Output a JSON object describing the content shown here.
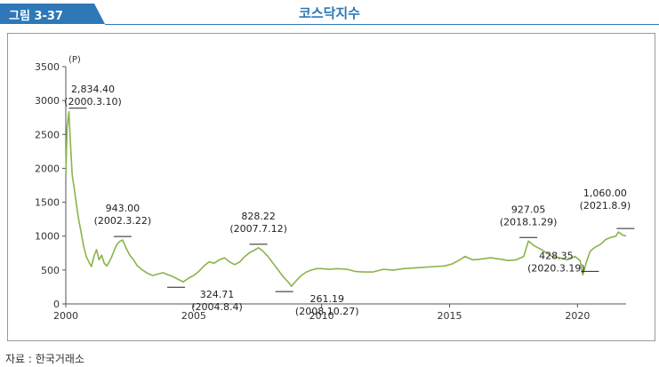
{
  "figure_label": "그림 3-37",
  "source": "자료 : 한국거래소",
  "chart_data": {
    "type": "line",
    "title": "코스닥지수",
    "ylabel": "(P)",
    "xlim": [
      2000,
      2021.9
    ],
    "ylim": [
      0,
      3500
    ],
    "xticks": [
      2000,
      2005,
      2010,
      2015,
      2020
    ],
    "yticks": [
      0,
      500,
      1000,
      1500,
      2000,
      2500,
      3000,
      3500
    ],
    "grid": false,
    "line_color": "#8ab44a",
    "series": [
      {
        "x": [
          2000.0,
          2000.05,
          2000.12,
          2000.19,
          2000.25,
          2000.33,
          2000.42,
          2000.5,
          2000.6,
          2000.7,
          2000.8,
          2000.9,
          2001.0,
          2001.1,
          2001.2,
          2001.3,
          2001.4,
          2001.5,
          2001.6,
          2001.7,
          2001.8,
          2001.9,
          2002.0,
          2002.1,
          2002.22,
          2002.35,
          2002.5,
          2002.65,
          2002.8,
          2003.0,
          2003.2,
          2003.4,
          2003.6,
          2003.8,
          2004.0,
          2004.2,
          2004.4,
          2004.59,
          2004.8,
          2005.0,
          2005.2,
          2005.4,
          2005.6,
          2005.8,
          2006.0,
          2006.2,
          2006.4,
          2006.6,
          2006.8,
          2007.0,
          2007.2,
          2007.4,
          2007.53,
          2007.7,
          2007.9,
          2008.1,
          2008.3,
          2008.5,
          2008.7,
          2008.82,
          2009.0,
          2009.2,
          2009.4,
          2009.6,
          2009.8,
          2010.0,
          2010.3,
          2010.6,
          2011.0,
          2011.3,
          2011.6,
          2012.0,
          2012.4,
          2012.8,
          2013.2,
          2013.6,
          2014.0,
          2014.4,
          2014.8,
          2015.1,
          2015.4,
          2015.6,
          2015.9,
          2016.2,
          2016.6,
          2017.0,
          2017.3,
          2017.6,
          2017.9,
          2018.08,
          2018.3,
          2018.6,
          2018.8,
          2019.0,
          2019.3,
          2019.6,
          2019.9,
          2020.1,
          2020.21,
          2020.35,
          2020.5,
          2020.7,
          2020.9,
          2021.1,
          2021.3,
          2021.5,
          2021.6,
          2021.75,
          2021.9
        ],
        "y": [
          1900,
          2600,
          2834.4,
          2300,
          1900,
          1700,
          1450,
          1250,
          1050,
          850,
          700,
          620,
          550,
          700,
          800,
          650,
          720,
          600,
          560,
          620,
          700,
          800,
          880,
          920,
          943,
          830,
          720,
          650,
          560,
          500,
          450,
          420,
          440,
          460,
          430,
          400,
          360,
          324.71,
          380,
          420,
          480,
          560,
          620,
          600,
          650,
          680,
          620,
          580,
          620,
          700,
          760,
          800,
          828.22,
          780,
          700,
          600,
          500,
          400,
          320,
          261.19,
          340,
          420,
          470,
          500,
          520,
          520,
          510,
          520,
          510,
          480,
          470,
          470,
          510,
          500,
          520,
          530,
          540,
          550,
          560,
          590,
          650,
          700,
          650,
          660,
          680,
          660,
          640,
          650,
          700,
          927.05,
          860,
          800,
          750,
          700,
          680,
          650,
          700,
          640,
          428.35,
          620,
          780,
          840,
          880,
          950,
          980,
          1000,
          1060,
          1020,
          1000
        ]
      }
    ],
    "annotations": [
      {
        "value": "2,834.40",
        "date": "(2000.3.10)",
        "x": 2000.19,
        "y": 2834.4
      },
      {
        "value": "943.00",
        "date": "(2002.3.22)",
        "x": 2002.22,
        "y": 943
      },
      {
        "value": "324.71",
        "date": "(2004.8.4)",
        "x": 2004.59,
        "y": 324.71
      },
      {
        "value": "828.22",
        "date": "(2007.7.12)",
        "x": 2007.53,
        "y": 828.22
      },
      {
        "value": "261.19",
        "date": "(2008.10.27)",
        "x": 2008.82,
        "y": 261.19
      },
      {
        "value": "927.05",
        "date": "(2018.1.29)",
        "x": 2018.08,
        "y": 927.05
      },
      {
        "value": "428.35",
        "date": "(2020.3.19)",
        "x": 2020.21,
        "y": 428.35
      },
      {
        "value": "1,060.00",
        "date": "(2021.8.9)",
        "x": 2021.6,
        "y": 1060
      }
    ]
  }
}
